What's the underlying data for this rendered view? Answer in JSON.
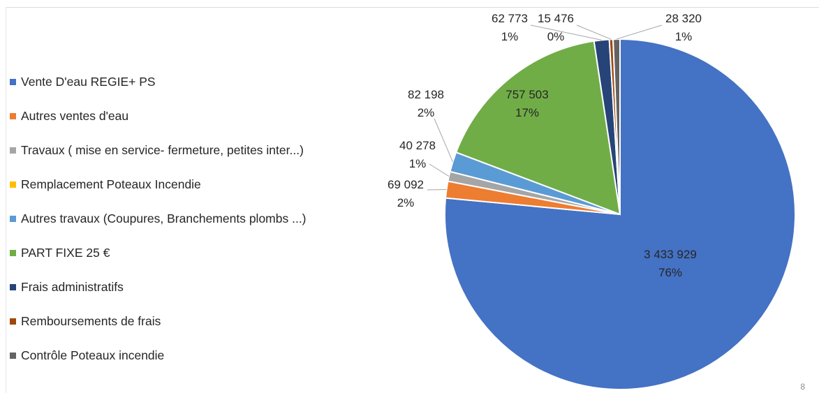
{
  "chart_data": {
    "type": "pie",
    "title": "",
    "legend_position": "left",
    "slices": [
      {
        "name": "Vente D'eau REGIE+ PS",
        "value": 3433929,
        "value_label": "3 433 929",
        "percent_label": "76%",
        "color": "#4472C4"
      },
      {
        "name": "Autres ventes d'eau",
        "value": 69092,
        "value_label": "69 092",
        "percent_label": "2%",
        "color": "#ED7D31"
      },
      {
        "name": "Travaux ( mise en service- fermeture, petites inter...)",
        "value": 40278,
        "value_label": "40 278",
        "percent_label": "1%",
        "color": "#A5A5A5"
      },
      {
        "name": "Remplacement Poteaux Incendie",
        "value": 0,
        "value_label": "",
        "percent_label": "",
        "color": "#FFC000"
      },
      {
        "name": "Autres travaux (Coupures, Branchements plombs ...)",
        "value": 82198,
        "value_label": "82 198",
        "percent_label": "2%",
        "color": "#5B9BD5"
      },
      {
        "name": "PART FIXE 25 €",
        "value": 757503,
        "value_label": "757 503",
        "percent_label": "17%",
        "color": "#70AD47"
      },
      {
        "name": "Frais administratifs",
        "value": 62773,
        "value_label": "62 773",
        "percent_label": "1%",
        "color": "#264478"
      },
      {
        "name": "Remboursements de frais",
        "value": 15476,
        "value_label": "15 476",
        "percent_label": "0%",
        "color": "#9E480E"
      },
      {
        "name": "Contrôle Poteaux incendie",
        "value": 28320,
        "value_label": "28 320",
        "percent_label": "1%",
        "color": "#636363"
      }
    ]
  },
  "footer": {
    "page_number": "8"
  }
}
